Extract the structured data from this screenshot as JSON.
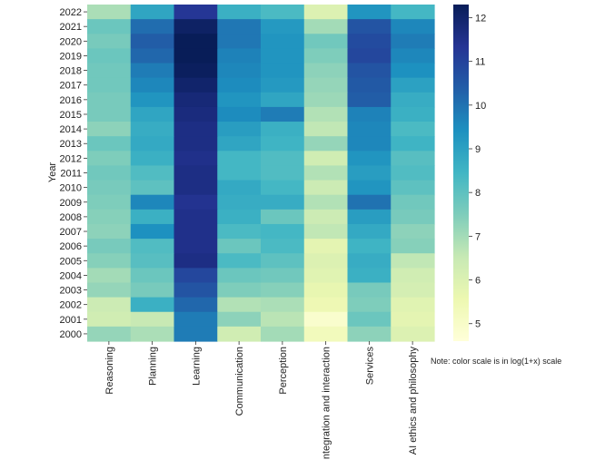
{
  "chart_data": {
    "type": "heatmap",
    "title": "",
    "ylabel": "Year",
    "xlabel": "",
    "note": "Note: color scale is in log(1+x) scale",
    "categories": [
      "Reasoning",
      "Planning",
      "Learning",
      "Communication",
      "Perception",
      "Integration and interaction",
      "Services",
      "AI ethics and philosophy"
    ],
    "years": [
      "2022",
      "2021",
      "2020",
      "2019",
      "2018",
      "2017",
      "2016",
      "2015",
      "2014",
      "2013",
      "2012",
      "2011",
      "2010",
      "2009",
      "2008",
      "2007",
      "2006",
      "2005",
      "2004",
      "2003",
      "2002",
      "2001",
      "2000"
    ],
    "values": [
      [
        6.9,
        8.9,
        11.3,
        8.6,
        8.3,
        6.0,
        9.3,
        8.4
      ],
      [
        7.8,
        10.1,
        12.1,
        9.9,
        9.2,
        7.0,
        10.6,
        9.6
      ],
      [
        7.6,
        10.4,
        12.3,
        9.9,
        9.3,
        7.7,
        10.8,
        9.8
      ],
      [
        7.8,
        10.2,
        12.3,
        9.7,
        9.3,
        7.5,
        10.9,
        9.6
      ],
      [
        7.7,
        9.8,
        12.2,
        9.6,
        9.3,
        7.3,
        10.6,
        9.4
      ],
      [
        7.7,
        9.6,
        12.0,
        9.5,
        9.2,
        7.2,
        10.5,
        9.0
      ],
      [
        7.6,
        9.3,
        11.8,
        9.3,
        8.9,
        7.1,
        10.4,
        8.7
      ],
      [
        7.6,
        8.9,
        11.7,
        9.5,
        9.8,
        6.8,
        9.7,
        8.6
      ],
      [
        7.3,
        8.7,
        11.6,
        9.1,
        8.6,
        6.6,
        9.6,
        8.3
      ],
      [
        7.8,
        8.8,
        11.6,
        8.9,
        8.5,
        7.2,
        9.6,
        8.5
      ],
      [
        7.5,
        8.6,
        11.5,
        8.4,
        8.2,
        6.3,
        9.3,
        8.1
      ],
      [
        7.7,
        8.2,
        11.6,
        8.4,
        8.2,
        6.8,
        9.1,
        8.2
      ],
      [
        7.6,
        8.0,
        11.6,
        8.8,
        8.4,
        6.4,
        9.3,
        8.0
      ],
      [
        7.5,
        9.6,
        11.4,
        8.7,
        8.7,
        6.8,
        10.0,
        7.7
      ],
      [
        7.4,
        8.6,
        11.5,
        8.6,
        7.8,
        6.4,
        9.1,
        7.6
      ],
      [
        7.3,
        9.4,
        11.5,
        8.3,
        8.4,
        6.6,
        8.8,
        7.3
      ],
      [
        7.6,
        8.2,
        11.5,
        7.8,
        8.3,
        5.8,
        8.5,
        7.4
      ],
      [
        7.4,
        8.1,
        11.6,
        8.3,
        8.0,
        6.0,
        8.7,
        6.6
      ],
      [
        7.0,
        7.8,
        10.9,
        7.8,
        7.7,
        5.9,
        8.6,
        6.3
      ],
      [
        7.2,
        7.6,
        10.6,
        7.5,
        7.4,
        5.7,
        7.6,
        6.2
      ],
      [
        6.4,
        8.6,
        10.2,
        6.8,
        6.9,
        5.5,
        7.5,
        5.9
      ],
      [
        6.3,
        6.5,
        9.8,
        7.3,
        6.7,
        4.9,
        7.8,
        5.8
      ],
      [
        7.2,
        6.9,
        9.8,
        6.3,
        7.0,
        5.3,
        7.3,
        6.0
      ]
    ],
    "vmin": 4.6,
    "vmax": 12.3,
    "colorbar_ticks": [
      5,
      6,
      7,
      8,
      9,
      10,
      11,
      12
    ],
    "colormap": [
      "#ffffd9",
      "#edf8b1",
      "#c7e9b4",
      "#7fcdbb",
      "#41b6c4",
      "#1d91c0",
      "#225ea8",
      "#253494",
      "#081d58"
    ]
  }
}
